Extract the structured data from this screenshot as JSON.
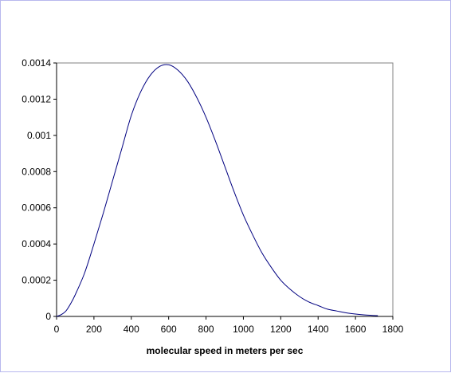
{
  "chart_data": {
    "type": "line",
    "title": "",
    "xlabel": "molecular speed in meters per sec",
    "ylabel": "",
    "xlim": [
      0,
      1800
    ],
    "ylim": [
      0,
      0.0014
    ],
    "x_ticks": [
      "0",
      "200",
      "400",
      "600",
      "800",
      "1000",
      "1200",
      "1400",
      "1600",
      "1800"
    ],
    "y_ticks": [
      "0",
      "0.0002",
      "0.0004",
      "0.0006",
      "0.0008",
      "0.001",
      "0.0012",
      "0.0014"
    ],
    "grid": false,
    "legend": "none",
    "series": [
      {
        "color": "#000080",
        "x": [
          0,
          25,
          50,
          75,
          100,
          150,
          200,
          250,
          300,
          350,
          400,
          450,
          500,
          550,
          600,
          650,
          700,
          750,
          800,
          850,
          900,
          950,
          1000,
          1050,
          1100,
          1150,
          1200,
          1250,
          1300,
          1350,
          1400,
          1450,
          1500,
          1550,
          1600,
          1650,
          1700,
          1720
        ],
        "y": [
          0,
          1e-05,
          3e-05,
          7e-05,
          0.00012,
          0.00024,
          0.0004,
          0.00057,
          0.00075,
          0.00093,
          0.00111,
          0.00124,
          0.00133,
          0.00138,
          0.00139,
          0.00136,
          0.0013,
          0.00121,
          0.0011,
          0.00097,
          0.00083,
          0.00069,
          0.00056,
          0.00045,
          0.00035,
          0.00027,
          0.0002,
          0.00015,
          0.00011,
          8e-05,
          6e-05,
          4e-05,
          3e-05,
          2e-05,
          1.3e-05,
          8e-06,
          5e-06,
          4e-06
        ]
      }
    ]
  }
}
